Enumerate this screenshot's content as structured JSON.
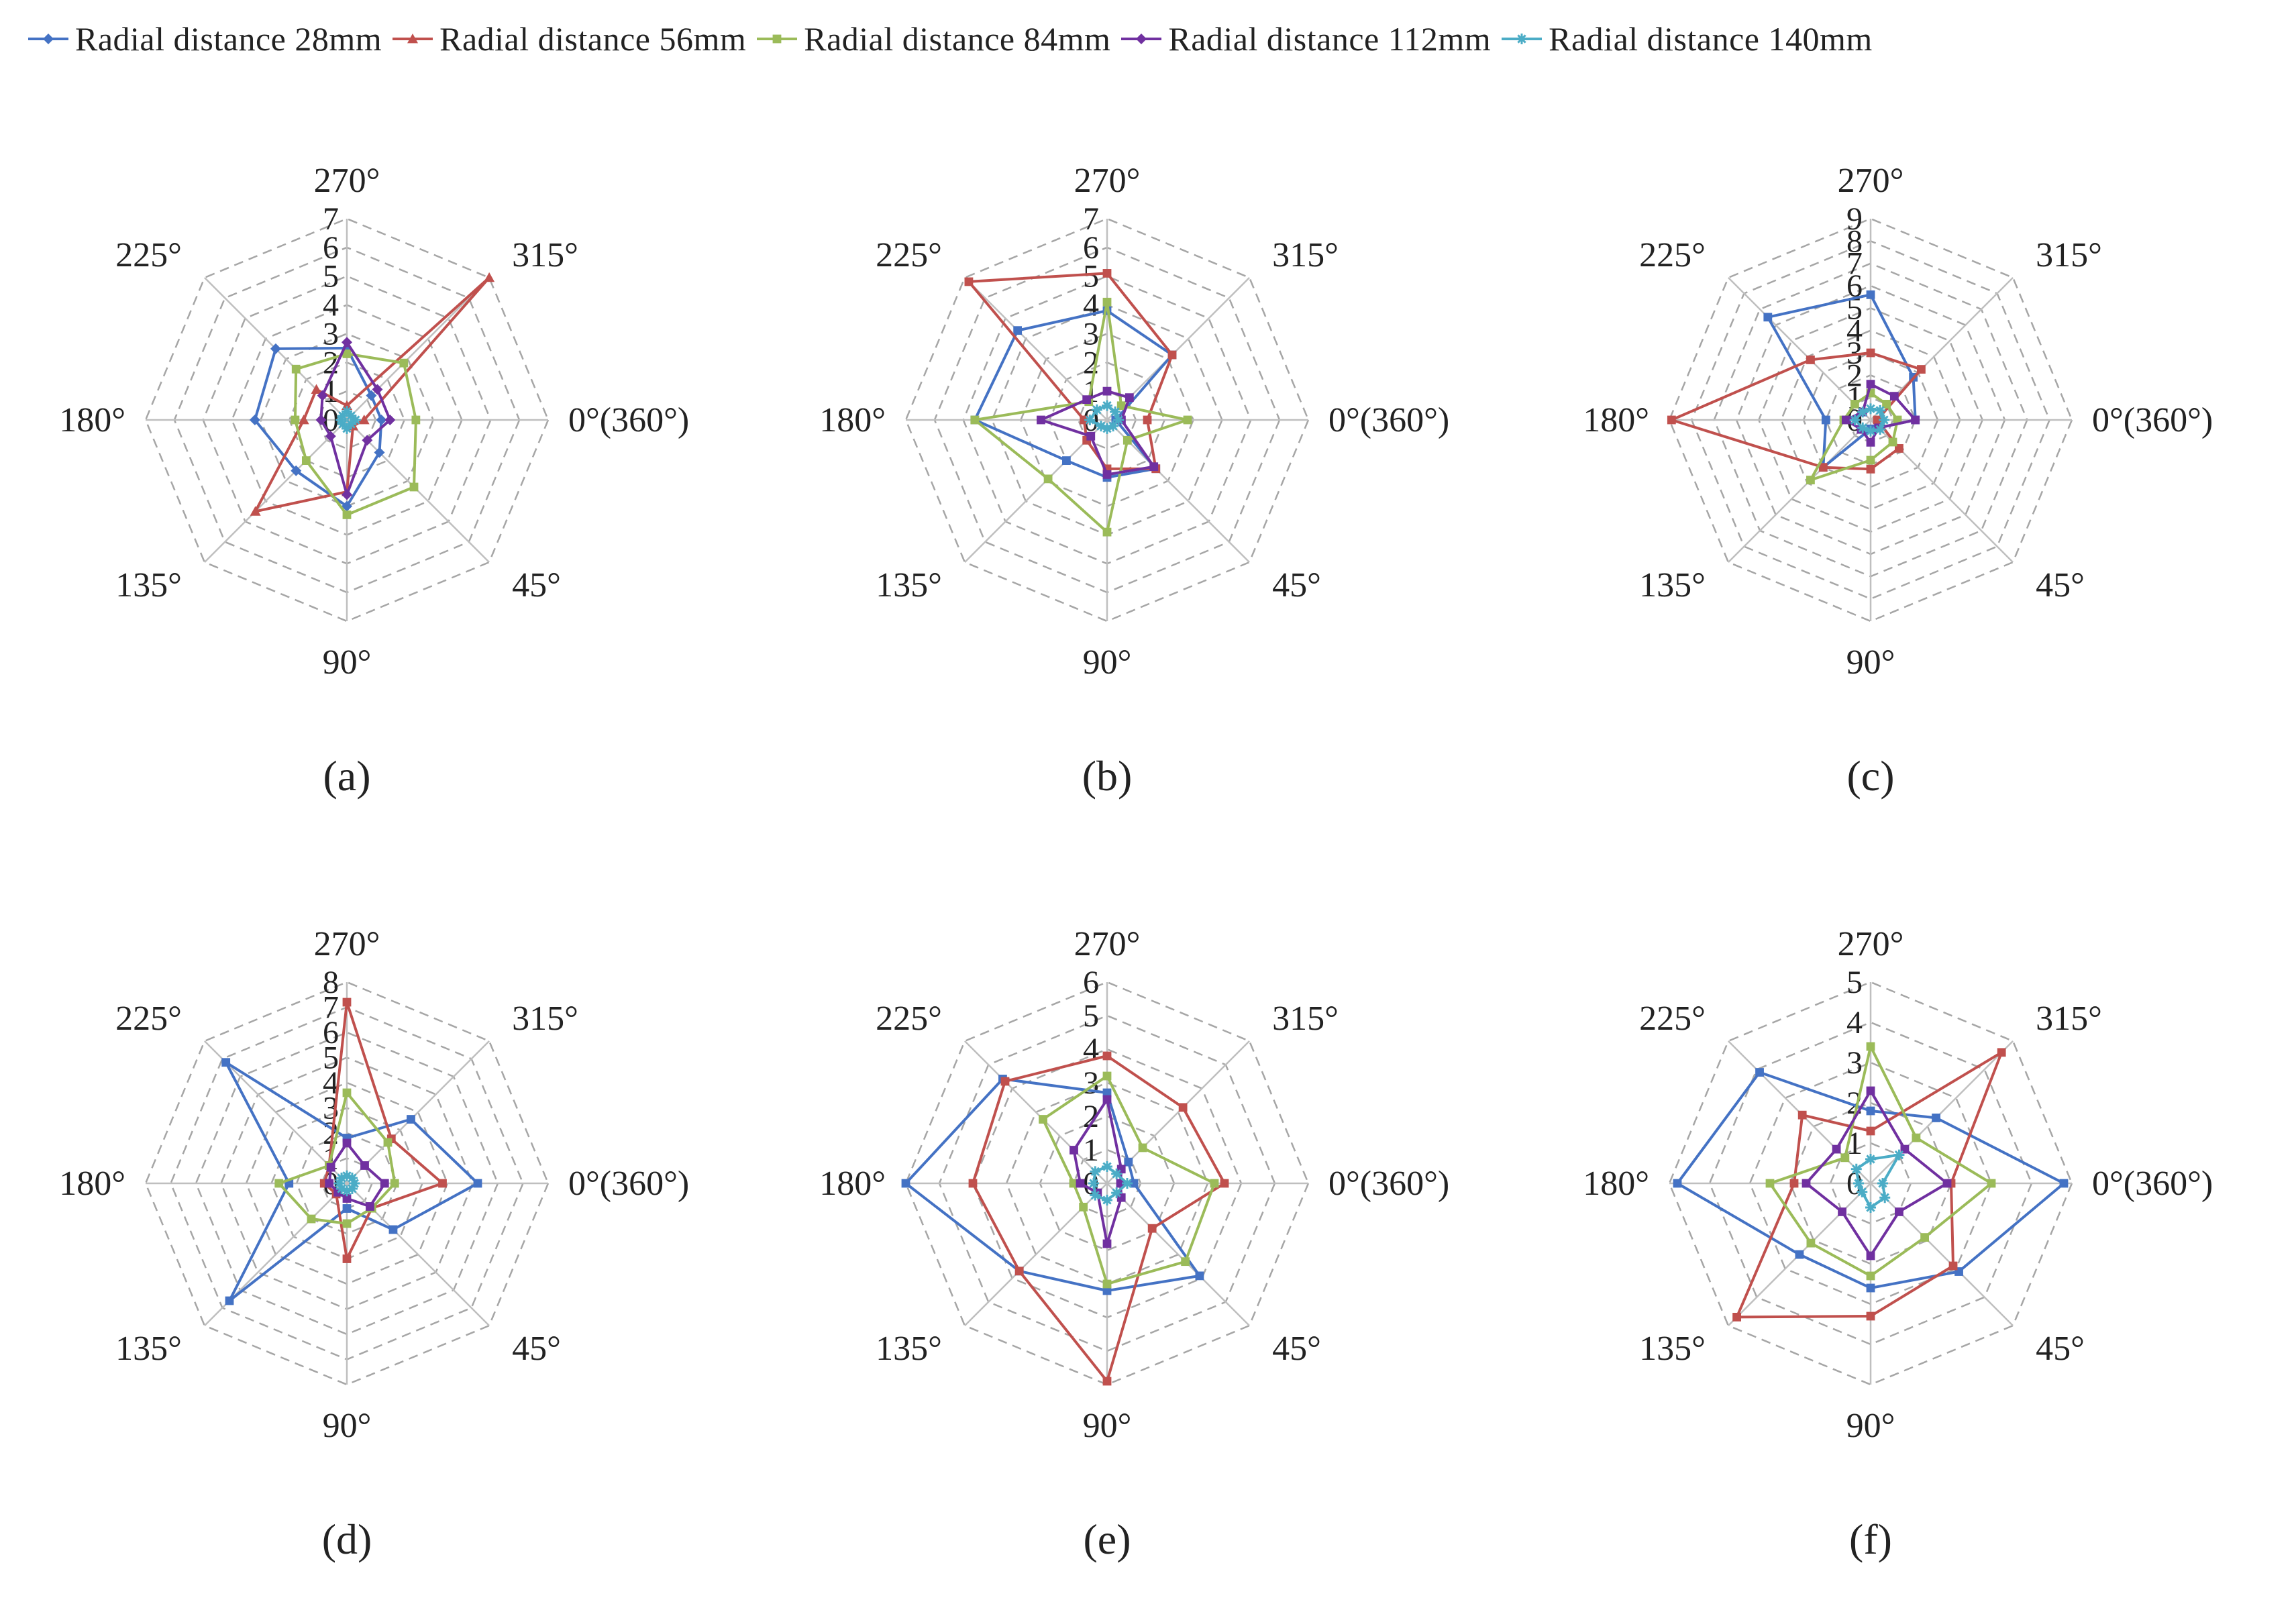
{
  "chart_data": {
    "type": "radar",
    "axis_labels": [
      "0°(360°)",
      "45°",
      "90°",
      "135°",
      "180°",
      "225°",
      "270°",
      "315°"
    ],
    "grid": "dashed octagons",
    "legend_position": "top",
    "series": [
      {
        "name": "Radial distance 28mm",
        "color": "#4472C4",
        "marker": "diamond"
      },
      {
        "name": "Radial distance 56mm",
        "color": "#C0504D",
        "marker": "triangle"
      },
      {
        "name": "Radial distance 84mm",
        "color": "#9BBB59",
        "marker": "square"
      },
      {
        "name": "Radial distance 112mm",
        "color": "#7030A0",
        "marker": "diamond"
      },
      {
        "name": "Radial distance 140mm",
        "color": "#4BACC6",
        "marker": "star"
      }
    ],
    "charts": [
      {
        "label": "(a)",
        "rmax": 7,
        "ticks": [
          "0",
          "1",
          "2",
          "3",
          "4",
          "5",
          "6",
          "7"
        ],
        "values": [
          [
            1.2,
            1.6,
            3.0,
            2.5,
            3.2,
            3.5,
            2.5,
            1.2
          ],
          [
            0.6,
            0.3,
            2.5,
            4.5,
            1.5,
            1.5,
            0.5,
            7.0
          ],
          [
            2.4,
            3.3,
            3.3,
            2.0,
            1.8,
            2.5,
            2.3,
            2.8
          ],
          [
            1.5,
            1.0,
            2.6,
            0.8,
            0.9,
            1.2,
            2.7,
            1.5
          ],
          [
            0.3,
            0.2,
            0.3,
            0.2,
            0.2,
            0.2,
            0.3,
            0.2
          ]
        ]
      },
      {
        "label": "(b)",
        "rmax": 7,
        "ticks": [
          "0",
          "1",
          "2",
          "3",
          "4",
          "5",
          "6",
          "7"
        ],
        "values": [
          [
            0.3,
            2.4,
            2.0,
            2.0,
            4.6,
            4.4,
            3.8,
            3.2
          ],
          [
            1.4,
            2.4,
            1.7,
            1.0,
            0.8,
            6.8,
            5.1,
            3.2
          ],
          [
            2.8,
            1.0,
            3.9,
            2.9,
            4.6,
            0.9,
            4.1,
            0.7
          ],
          [
            0.5,
            2.3,
            1.9,
            0.8,
            2.3,
            1.0,
            1.0,
            1.1
          ],
          [
            0.4,
            0.3,
            0.3,
            0.3,
            0.6,
            0.5,
            0.5,
            0.4
          ]
        ]
      },
      {
        "label": "(c)",
        "rmax": 9,
        "ticks": [
          "0",
          "1",
          "2",
          "3",
          "4",
          "5",
          "6",
          "7",
          "8",
          "9"
        ],
        "values": [
          [
            2.0,
            0.5,
            0.4,
            3.0,
            2.0,
            6.5,
            5.6,
            2.7
          ],
          [
            0.3,
            1.8,
            2.2,
            3.0,
            8.9,
            3.8,
            3.0,
            3.2
          ],
          [
            1.2,
            1.4,
            1.8,
            3.8,
            1.2,
            1.0,
            1.2,
            1.0
          ],
          [
            2.0,
            0.5,
            1.0,
            0.6,
            1.1,
            0.5,
            1.6,
            1.5
          ],
          [
            0.6,
            0.6,
            0.5,
            0.5,
            0.7,
            0.5,
            0.5,
            0.6
          ]
        ]
      },
      {
        "label": "(d)",
        "rmax": 8,
        "ticks": [
          "0",
          "1",
          "2",
          "3",
          "4",
          "5",
          "6",
          "7",
          "8"
        ],
        "values": [
          [
            5.2,
            2.6,
            1.0,
            6.6,
            2.3,
            6.8,
            1.8,
            3.6
          ],
          [
            3.8,
            1.4,
            3.0,
            0.6,
            0.9,
            1.0,
            7.2,
            2.5
          ],
          [
            1.9,
            1.4,
            1.6,
            2.0,
            2.7,
            1.0,
            3.6,
            2.3
          ],
          [
            1.5,
            1.3,
            0.6,
            0.5,
            0.7,
            0.9,
            1.6,
            1.0
          ],
          [
            0.3,
            0.3,
            0.3,
            0.3,
            0.3,
            0.3,
            0.3,
            0.3
          ]
        ]
      },
      {
        "label": "(e)",
        "rmax": 6,
        "ticks": [
          "0",
          "1",
          "2",
          "3",
          "4",
          "5",
          "6"
        ],
        "values": [
          [
            0.8,
            3.9,
            3.2,
            3.7,
            6.0,
            4.4,
            2.7,
            0.9
          ],
          [
            3.5,
            1.9,
            5.9,
            3.7,
            4.0,
            4.3,
            3.8,
            3.2
          ],
          [
            3.2,
            3.3,
            3.0,
            1.0,
            1.0,
            2.7,
            3.2,
            1.5
          ],
          [
            0.4,
            0.6,
            1.8,
            0.4,
            0.8,
            1.4,
            2.5,
            0.6
          ],
          [
            0.6,
            0.4,
            0.5,
            0.5,
            0.4,
            0.5,
            0.5,
            0.4
          ]
        ]
      },
      {
        "label": "(f)",
        "rmax": 5,
        "ticks": [
          "0",
          "1",
          "2",
          "3",
          "4",
          "5"
        ],
        "values": [
          [
            4.8,
            3.1,
            2.6,
            2.5,
            4.8,
            3.9,
            1.8,
            2.3
          ],
          [
            2.0,
            2.9,
            3.3,
            4.7,
            1.9,
            2.4,
            1.3,
            4.6
          ],
          [
            3.0,
            1.9,
            2.3,
            2.1,
            2.5,
            0.9,
            3.4,
            1.6
          ],
          [
            1.9,
            1.0,
            1.8,
            1.0,
            1.6,
            1.2,
            2.3,
            1.2
          ],
          [
            0.3,
            0.5,
            0.6,
            0.3,
            0.3,
            0.5,
            0.6,
            1.0
          ]
        ]
      }
    ]
  }
}
